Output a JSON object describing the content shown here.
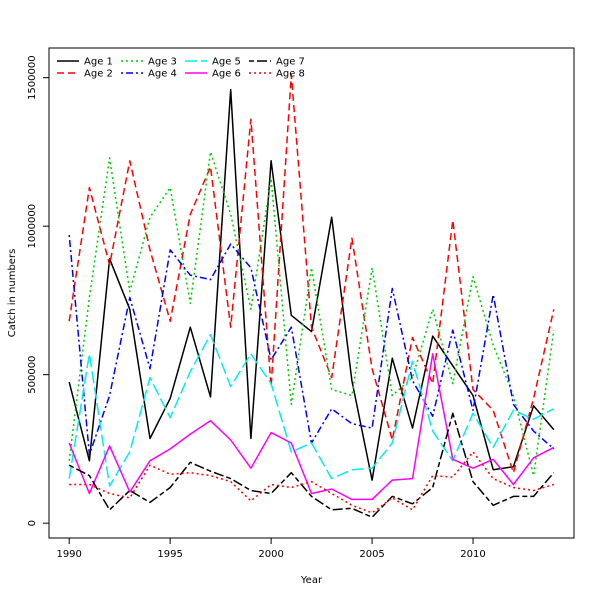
{
  "chart_data": {
    "type": "line",
    "title": "",
    "xlabel": "Year",
    "ylabel": "Catch in numbers",
    "xlim": [
      1989,
      2015
    ],
    "ylim": [
      -50000,
      1600000
    ],
    "x_ticks": [
      1990,
      1995,
      2000,
      2005,
      2010
    ],
    "y_ticks": [
      0,
      500000,
      1000000,
      1500000
    ],
    "legend_position": "top-left",
    "grid": false,
    "x": [
      1990,
      1991,
      1992,
      1993,
      1994,
      1995,
      1996,
      1997,
      1998,
      1999,
      2000,
      2001,
      2002,
      2003,
      2004,
      2005,
      2006,
      2007,
      2008,
      2009,
      2010,
      2011,
      2012,
      2013,
      2014
    ],
    "series": [
      {
        "name": "Age 1",
        "color": "#000000",
        "dash": "solid",
        "values": [
          475000,
          210000,
          890000,
          720000,
          285000,
          420000,
          660000,
          425000,
          1460000,
          285000,
          1220000,
          700000,
          645000,
          1030000,
          480000,
          145000,
          555000,
          320000,
          630000,
          530000,
          430000,
          180000,
          190000,
          395000,
          315000
        ]
      },
      {
        "name": "Age 2",
        "color": "#ff0000",
        "dash": "dashed",
        "values": [
          680000,
          1130000,
          870000,
          1220000,
          920000,
          680000,
          1040000,
          1200000,
          660000,
          1360000,
          460000,
          1510000,
          660000,
          490000,
          960000,
          520000,
          280000,
          625000,
          470000,
          1020000,
          450000,
          380000,
          170000,
          420000,
          720000
        ]
      },
      {
        "name": "Age 3",
        "color": "#00cd00",
        "dash": "dotted",
        "values": [
          210000,
          760000,
          1230000,
          780000,
          1030000,
          1130000,
          740000,
          1250000,
          1040000,
          720000,
          1160000,
          400000,
          860000,
          450000,
          430000,
          860000,
          430000,
          490000,
          720000,
          470000,
          830000,
          600000,
          430000,
          160000,
          650000
        ]
      },
      {
        "name": "Age 4",
        "color": "#0000ff",
        "dash": "dotdash",
        "values": [
          970000,
          230000,
          430000,
          760000,
          520000,
          920000,
          835000,
          820000,
          940000,
          860000,
          550000,
          660000,
          270000,
          385000,
          335000,
          320000,
          790000,
          480000,
          360000,
          650000,
          380000,
          770000,
          400000,
          310000,
          250000
        ]
      },
      {
        "name": "Age 5",
        "color": "#00eeee",
        "dash": "longdash",
        "values": [
          150000,
          570000,
          125000,
          240000,
          490000,
          355000,
          510000,
          635000,
          460000,
          570000,
          470000,
          240000,
          270000,
          150000,
          180000,
          185000,
          270000,
          545000,
          310000,
          210000,
          370000,
          255000,
          380000,
          350000,
          385000
        ]
      },
      {
        "name": "Age 6",
        "color": "#ff00ff",
        "dash": "solid",
        "values": [
          270000,
          100000,
          260000,
          105000,
          210000,
          250000,
          300000,
          345000,
          280000,
          185000,
          305000,
          270000,
          100000,
          115000,
          80000,
          80000,
          145000,
          150000,
          570000,
          215000,
          185000,
          215000,
          130000,
          220000,
          255000
        ]
      },
      {
        "name": "Age 7",
        "color": "#000000",
        "dash": "twodash",
        "values": [
          195000,
          160000,
          45000,
          110000,
          70000,
          120000,
          205000,
          175000,
          150000,
          110000,
          100000,
          170000,
          90000,
          45000,
          50000,
          20000,
          90000,
          65000,
          120000,
          370000,
          140000,
          60000,
          90000,
          90000,
          170000
        ]
      },
      {
        "name": "Age 8",
        "color": "#ff0000",
        "dash": "dotted",
        "values": [
          130000,
          130000,
          100000,
          85000,
          195000,
          165000,
          170000,
          160000,
          140000,
          75000,
          130000,
          120000,
          140000,
          100000,
          60000,
          35000,
          85000,
          45000,
          160000,
          155000,
          240000,
          150000,
          120000,
          110000,
          130000
        ]
      }
    ]
  }
}
